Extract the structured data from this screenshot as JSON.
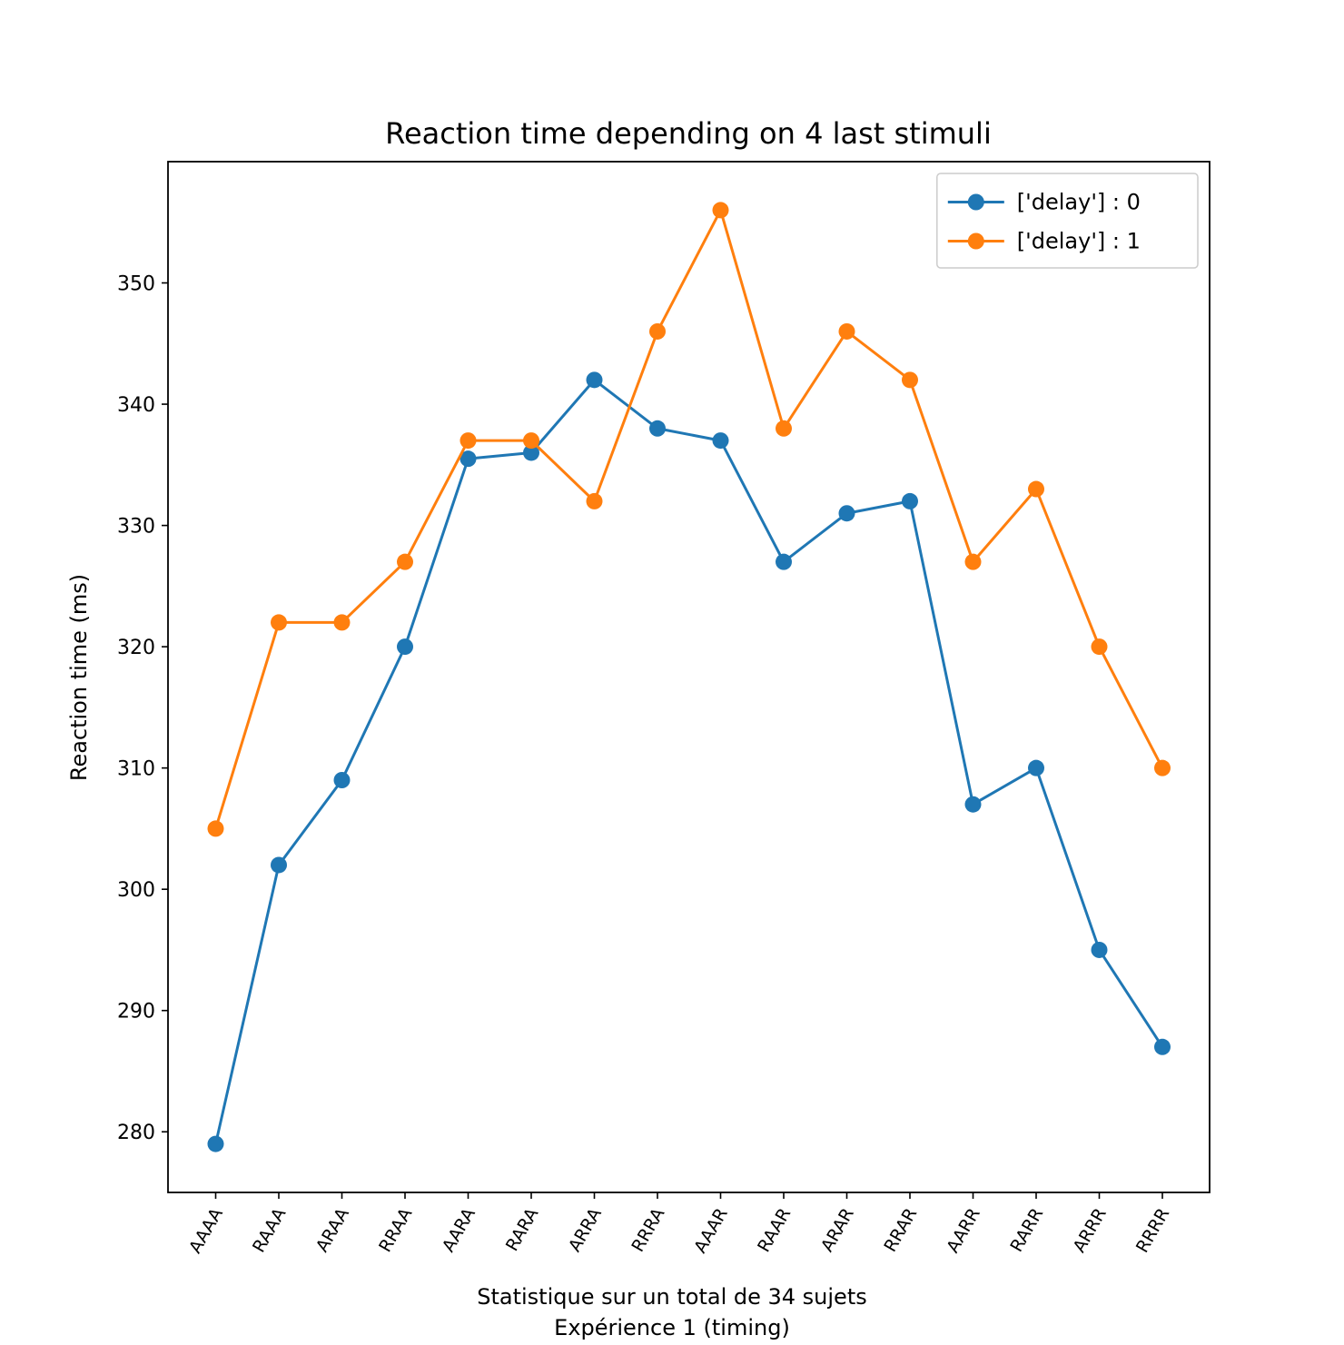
{
  "chart_data": {
    "type": "line",
    "title": "Reaction time depending on 4 last stimuli",
    "xlabel_lines": [
      "Statistique sur un total de 34 sujets",
      "Expérience 1 (timing)"
    ],
    "ylabel": "Reaction time (ms)",
    "categories": [
      "AAAA",
      "RAAA",
      "ARAA",
      "RRAA",
      "AARA",
      "RARA",
      "ARRA",
      "RRRA",
      "AAAR",
      "RAAR",
      "ARAR",
      "RRAR",
      "AARR",
      "RARR",
      "ARRR",
      "RRRR"
    ],
    "ylim": [
      275,
      360
    ],
    "yticks": [
      280,
      290,
      300,
      310,
      320,
      330,
      340,
      350
    ],
    "grid": false,
    "legend_position": "top-right",
    "series": [
      {
        "name": "['delay'] : 0",
        "color": "#1f77b4",
        "values": [
          279,
          302,
          309,
          320,
          335.5,
          336,
          342,
          338,
          337,
          327,
          331,
          332,
          307,
          310,
          295,
          287
        ]
      },
      {
        "name": "['delay'] : 1",
        "color": "#ff7f0e",
        "values": [
          305,
          322,
          322,
          327,
          337,
          337,
          332,
          346,
          356,
          338,
          346,
          342,
          327,
          333,
          320,
          310
        ]
      }
    ]
  }
}
